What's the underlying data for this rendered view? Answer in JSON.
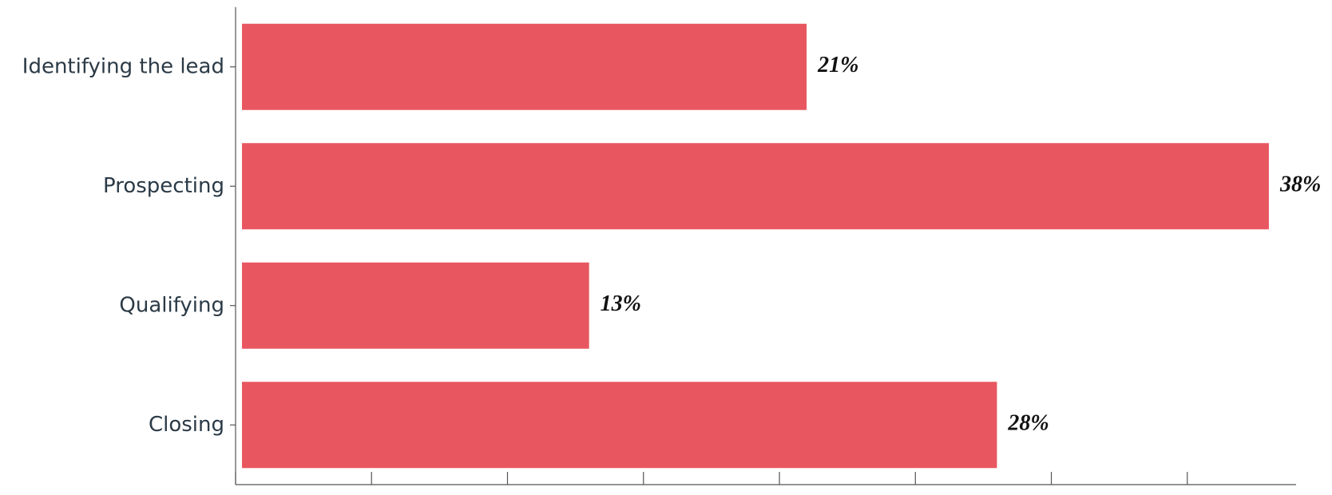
{
  "chart_data": {
    "type": "bar",
    "orientation": "horizontal",
    "categories": [
      "Identifying the lead",
      "Prospecting",
      "Qualifying",
      "Closing"
    ],
    "values": [
      21,
      38,
      13,
      28
    ],
    "value_labels": [
      "21%",
      "38%",
      "13%",
      "28%"
    ],
    "color": "#e85760",
    "xlim": [
      0,
      39
    ],
    "xticks": [
      0,
      5,
      10,
      15,
      20,
      25,
      30,
      35
    ],
    "grid": false
  }
}
